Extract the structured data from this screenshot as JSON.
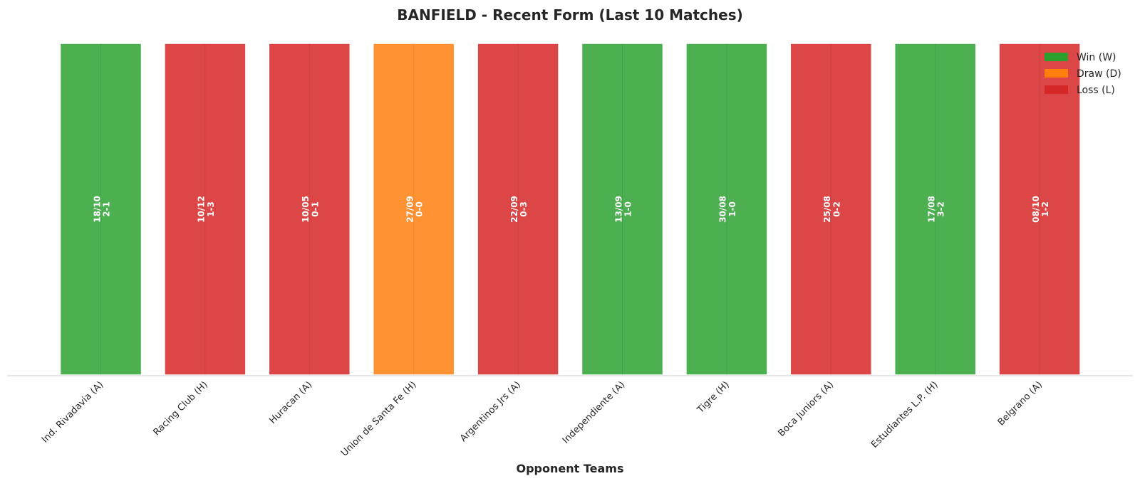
{
  "chart_data": {
    "type": "bar",
    "title": "BANFIELD - Recent Form (Last 10 Matches)",
    "xlabel": "Opponent Teams",
    "ylabel": "",
    "grid": false,
    "legend_position": "top-right",
    "categories": [
      "Ind. Rivadavia (A)",
      "Racing Club (H)",
      "Huracan (A)",
      "Union de Santa Fe (H)",
      "Argentinos Jrs (A)",
      "Independiente (A)",
      "Tigre (H)",
      "Boca Juniors (A)",
      "Estudiantes L.P. (H)",
      "Belgrano (A)"
    ],
    "values": [
      1,
      1,
      1,
      1,
      1,
      1,
      1,
      1,
      1,
      1
    ],
    "results": [
      "W",
      "L",
      "L",
      "D",
      "L",
      "W",
      "W",
      "L",
      "W",
      "L"
    ],
    "dates": [
      "18/10",
      "10/12",
      "10/05",
      "27/09",
      "22/09",
      "13/09",
      "30/08",
      "25/08",
      "17/08",
      "08/10"
    ],
    "scores": [
      "2-1",
      "1-3",
      "0-1",
      "0-0",
      "0-3",
      "1-0",
      "1-0",
      "0-2",
      "3-2",
      "1-2"
    ],
    "legend": [
      {
        "key": "W",
        "label": "Win (W)",
        "color": "#2ca02c"
      },
      {
        "key": "D",
        "label": "Draw (D)",
        "color": "#ff7f0e"
      },
      {
        "key": "L",
        "label": "Loss (L)",
        "color": "#d62728"
      }
    ],
    "bar_colors": {
      "W": "#4caf50",
      "D": "#ff9233",
      "L": "#dc4646"
    }
  }
}
